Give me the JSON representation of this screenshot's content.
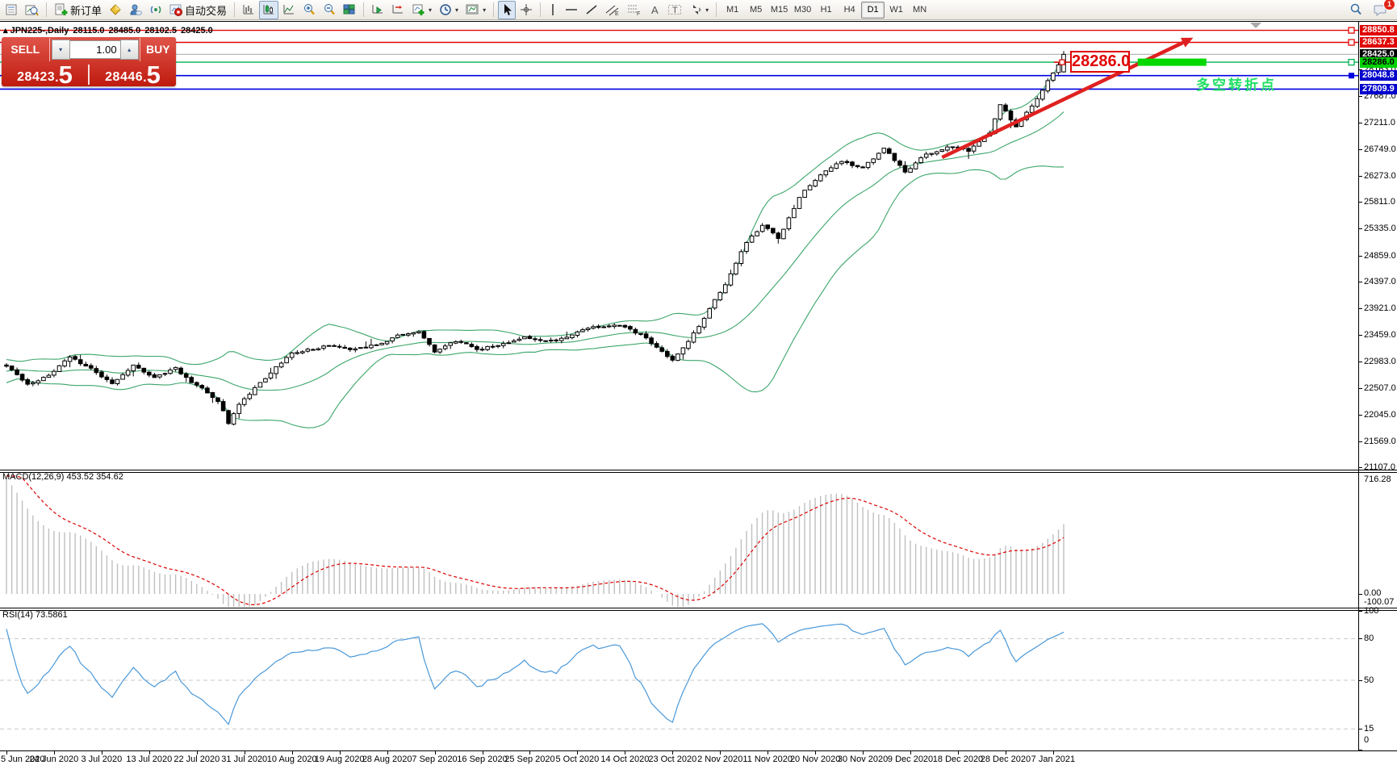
{
  "toolbar": {
    "new_order_label": "新订单",
    "autotrading_label": "自动交易",
    "timeframes": [
      "M1",
      "M5",
      "M15",
      "M30",
      "H1",
      "H4",
      "D1",
      "W1",
      "MN"
    ],
    "active_timeframe": "D1",
    "notification_count": "1"
  },
  "one_click": {
    "sell_label": "SELL",
    "buy_label": "BUY",
    "volume": "1.00",
    "sell_price": "28423.5",
    "buy_price": "28446.5"
  },
  "chart_header": {
    "symbol_period": "JPN225-,Daily",
    "open": "28115.0",
    "high": "28485.0",
    "low": "28102.5",
    "close": "28425.0"
  },
  "macd_panel": {
    "label": "MACD(12,26,9) 453.52 354.62",
    "max": "716.28",
    "zero": "0.00",
    "min": "-100.07"
  },
  "rsi_panel": {
    "label": "RSI(14) 73.5861",
    "ticks": [
      100,
      80,
      50,
      15,
      0
    ],
    "grid_levels": [
      80,
      50,
      15
    ]
  },
  "annotations": {
    "price_flag": "28286.0",
    "note": "多空转折点",
    "trend_arrow": {
      "from_bar": 177,
      "from_price": 26600,
      "to_bar": 224.5,
      "to_price": 28720,
      "color": "#e02020"
    },
    "highlight_bar": {
      "from_bar": 214,
      "to_bar": 227,
      "price": 28286.0,
      "color": "#00d800"
    }
  },
  "chart_data": {
    "type": "candlestick",
    "symbol": "JPN225-",
    "timeframe": "Daily",
    "visible_bars": 201,
    "last_bar": {
      "open": 28115.0,
      "high": 28485.0,
      "low": 28102.5,
      "close": 28425.0
    },
    "bid": 28423.5,
    "ask": 28446.5,
    "indicators": [
      "Bollinger Bands(20,2)",
      "MACD(12,26,9) 453.52 354.62",
      "RSI(14) 73.5861"
    ],
    "price_ticks": [
      28163.0,
      27687.0,
      27211.0,
      26749.0,
      26273.0,
      25811.0,
      25335.0,
      24859.0,
      24397.0,
      23921.0,
      23459.0,
      22983.0,
      22507.0,
      22045.0,
      21569.0,
      21107.0
    ],
    "level_labels": [
      {
        "value": "28850.8",
        "price": 28850.8,
        "bg": "#e00505",
        "fg": "#ffffff",
        "line": "#e00505",
        "lw": 1.4,
        "handle": "hollow"
      },
      {
        "value": "28637.3",
        "price": 28637.3,
        "bg": "#e00505",
        "fg": "#ffffff",
        "line": "#e00505",
        "lw": 1.4,
        "handle": "hollow"
      },
      {
        "value": "28425.0",
        "price": 28425.0,
        "bg": "#000000",
        "fg": "#ffffff",
        "line": "#b8b8b8",
        "lw": 1.2,
        "handle": "none"
      },
      {
        "value": "28286.0",
        "price": 28286.0,
        "bg": "#00d200",
        "fg": "#000000",
        "line": "#00b050",
        "lw": 1.4,
        "handle": "hollow"
      },
      {
        "value": "28048.8",
        "price": 28048.8,
        "bg": "#0000cd",
        "fg": "#ffffff",
        "line": "#0000e0",
        "lw": 1.6,
        "handle": "filled"
      },
      {
        "value": "27809.9",
        "price": 27809.9,
        "bg": "#0000cd",
        "fg": "#ffffff",
        "line": "#0000e0",
        "lw": 1.6,
        "handle": "none"
      }
    ],
    "dates": [
      "5 Jun 2020",
      "24 Jun 2020",
      "3 Jul 2020",
      "13 Jul 2020",
      "22 Jul 2020",
      "31 Jul 2020",
      "10 Aug 2020",
      "19 Aug 2020",
      "28 Aug 2020",
      "7 Sep 2020",
      "16 Sep 2020",
      "25 Sep 2020",
      "5 Oct 2020",
      "14 Oct 2020",
      "23 Oct 2020",
      "2 Nov 2020",
      "11 Nov 2020",
      "20 Nov 2020",
      "30 Nov 2020",
      "9 Dec 2020",
      "18 Dec 2020",
      "28 Dec 2020",
      "7 Jan 2021"
    ],
    "close_path_anchors": [
      [
        -40,
        21500
      ],
      [
        -25,
        22350
      ],
      [
        -12,
        22850
      ],
      [
        0,
        22900
      ],
      [
        4,
        22550
      ],
      [
        8,
        22750
      ],
      [
        12,
        23050
      ],
      [
        16,
        22850
      ],
      [
        20,
        22600
      ],
      [
        24,
        22900
      ],
      [
        28,
        22700
      ],
      [
        32,
        22850
      ],
      [
        36,
        22550
      ],
      [
        40,
        22300
      ],
      [
        42,
        21900
      ],
      [
        44,
        22250
      ],
      [
        48,
        22600
      ],
      [
        54,
        23150
      ],
      [
        60,
        23250
      ],
      [
        66,
        23200
      ],
      [
        70,
        23300
      ],
      [
        74,
        23450
      ],
      [
        78,
        23550
      ],
      [
        81,
        23150
      ],
      [
        85,
        23350
      ],
      [
        89,
        23200
      ],
      [
        92,
        23250
      ],
      [
        98,
        23400
      ],
      [
        104,
        23350
      ],
      [
        110,
        23550
      ],
      [
        116,
        23650
      ],
      [
        121,
        23400
      ],
      [
        126,
        23000
      ],
      [
        129,
        23350
      ],
      [
        132,
        23750
      ],
      [
        136,
        24350
      ],
      [
        140,
        25100
      ],
      [
        143,
        25400
      ],
      [
        146,
        25150
      ],
      [
        150,
        25900
      ],
      [
        154,
        26300
      ],
      [
        158,
        26550
      ],
      [
        162,
        26400
      ],
      [
        166,
        26750
      ],
      [
        170,
        26350
      ],
      [
        174,
        26650
      ],
      [
        178,
        26800
      ],
      [
        182,
        26700
      ],
      [
        186,
        27050
      ],
      [
        188,
        27550
      ],
      [
        191,
        27150
      ],
      [
        194,
        27500
      ],
      [
        197,
        27950
      ],
      [
        200,
        28425
      ]
    ],
    "bollinger": {
      "period": 20,
      "deviation": 2,
      "color": "#3ca66b"
    },
    "macd_scale": {
      "max": 716.28,
      "min": -100.07
    },
    "rsi_scale": {
      "max": 100,
      "min": 0
    }
  }
}
